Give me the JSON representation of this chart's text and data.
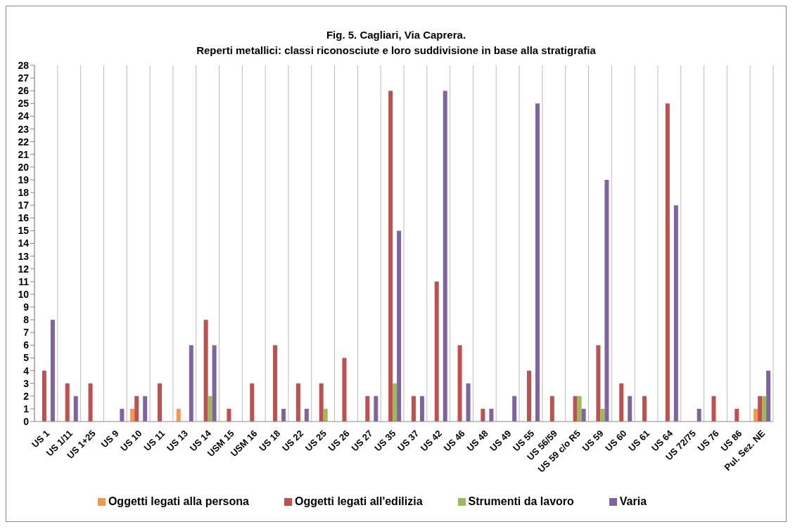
{
  "chart_data": {
    "type": "bar",
    "title": "Fig. 5. Cagliari, Via Caprera.",
    "subtitle": "Reperti metallici: classi riconosciute e loro suddivisione in base alla stratigrafia",
    "categories": [
      "US 1",
      "US 1/11",
      "US 1+25",
      "US 9",
      "US 10",
      "US 11",
      "US 13",
      "US 14",
      "USM 15",
      "USM 16",
      "US 18",
      "US 22",
      "US 25",
      "US 26",
      "US 27",
      "US 35",
      "US 37",
      "US 42",
      "US 46",
      "US 48",
      "US 49",
      "US 55",
      "US 56/59",
      "US 59 c/o R5",
      "US 59",
      "US 60",
      "US 61",
      "US 64",
      "US 72/75",
      "US 76",
      "US 86",
      "Pul. Sez. NE"
    ],
    "series": [
      {
        "name": "Oggetti legati alla persona",
        "color": "#f79646",
        "values": [
          0,
          0,
          0,
          0,
          1,
          0,
          1,
          0,
          0,
          0,
          0,
          0,
          0,
          0,
          0,
          0,
          0,
          0,
          0,
          0,
          0,
          0,
          0,
          0,
          0,
          0,
          0,
          0,
          0,
          0,
          0,
          1
        ]
      },
      {
        "name": "Oggetti legati all'edilizia",
        "color": "#c0504d",
        "values": [
          4,
          3,
          3,
          0,
          2,
          3,
          0,
          8,
          1,
          3,
          6,
          3,
          3,
          5,
          2,
          26,
          2,
          11,
          6,
          1,
          0,
          4,
          2,
          2,
          6,
          3,
          2,
          25,
          0,
          2,
          1,
          2
        ]
      },
      {
        "name": "Strumenti da lavoro",
        "color": "#9bbb59",
        "values": [
          0,
          0,
          0,
          0,
          0,
          0,
          0,
          2,
          0,
          0,
          0,
          0,
          1,
          0,
          0,
          3,
          0,
          0,
          0,
          0,
          0,
          0,
          0,
          2,
          1,
          0,
          0,
          0,
          0,
          0,
          0,
          2
        ]
      },
      {
        "name": "Varia",
        "color": "#8064a2",
        "values": [
          8,
          2,
          0,
          1,
          2,
          0,
          6,
          6,
          0,
          0,
          1,
          1,
          0,
          0,
          2,
          15,
          2,
          26,
          3,
          1,
          2,
          25,
          0,
          1,
          19,
          2,
          0,
          17,
          1,
          0,
          0,
          4
        ]
      }
    ],
    "ylim": [
      0,
      28
    ],
    "yticks": [
      0,
      1,
      2,
      3,
      4,
      5,
      6,
      7,
      8,
      9,
      10,
      11,
      12,
      13,
      14,
      15,
      16,
      17,
      18,
      19,
      20,
      21,
      22,
      23,
      24,
      25,
      26,
      27,
      28
    ],
    "grid": "x",
    "legend": "bottom"
  }
}
